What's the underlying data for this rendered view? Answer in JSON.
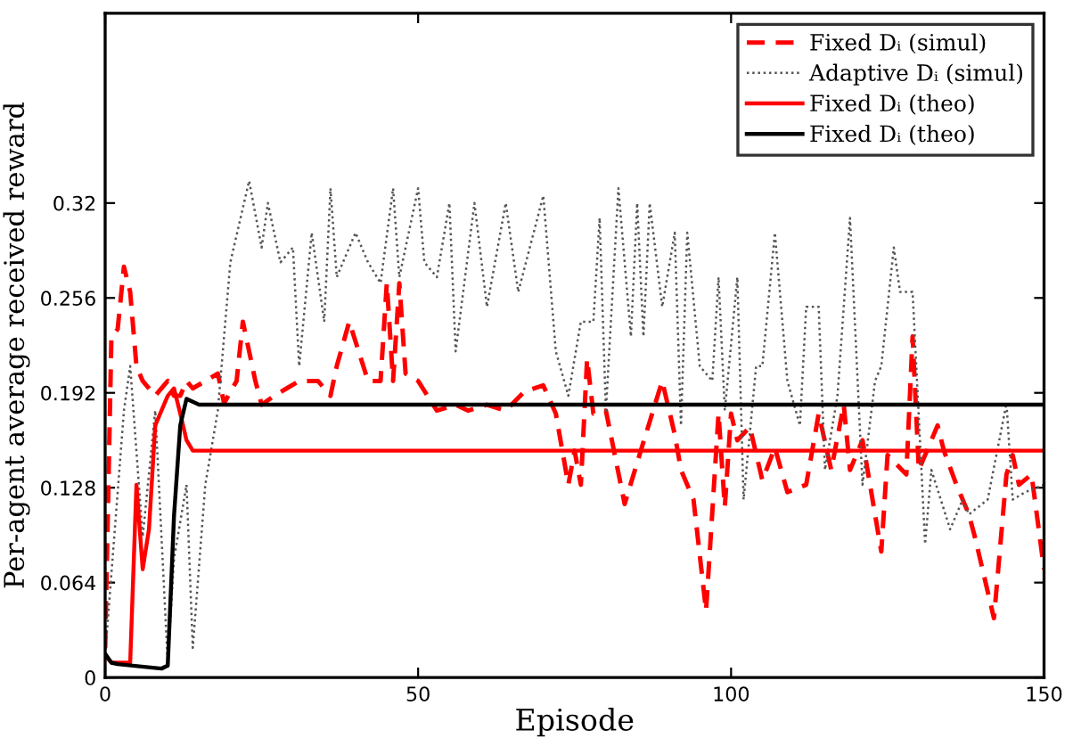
{
  "chart_data": {
    "type": "line",
    "xlabel": "Episode",
    "ylabel": "Per-agent average received reward",
    "xlim": [
      0,
      150
    ],
    "xticks": [
      0,
      50,
      100,
      150
    ],
    "ylim": [
      0,
      0.448
    ],
    "yticks": [
      0,
      0.064,
      0.128,
      0.192,
      0.256,
      0.32
    ],
    "grid": false,
    "legend": "top right",
    "marker": "none",
    "series": [
      {
        "name": "Fixed Dᵢ (simul)",
        "color": "#ff0000",
        "line_style": "dashed",
        "x": [
          0,
          1,
          2,
          3,
          4,
          5,
          6,
          8,
          10,
          11,
          12,
          13,
          14,
          16,
          18,
          19,
          21,
          22,
          24,
          25,
          27,
          29,
          31,
          34,
          36,
          37,
          39,
          42,
          44,
          45,
          46,
          47,
          48,
          50,
          53,
          56,
          58,
          61,
          64,
          67,
          70,
          72,
          74,
          75,
          76,
          77,
          78,
          80,
          83,
          85,
          89,
          91,
          92,
          94,
          96,
          98,
          99,
          100,
          101,
          103,
          105,
          107,
          109,
          112,
          114,
          116,
          118,
          119,
          121,
          124,
          125,
          128,
          129,
          130,
          133,
          134,
          136,
          138,
          139,
          142,
          144,
          145,
          146,
          148,
          150
        ],
        "values": [
          0.02,
          0.23,
          0.235,
          0.277,
          0.26,
          0.21,
          0.2,
          0.19,
          0.2,
          0.19,
          0.19,
          0.2,
          0.195,
          0.2,
          0.205,
          0.185,
          0.2,
          0.24,
          0.2,
          0.184,
          0.19,
          0.195,
          0.2,
          0.2,
          0.19,
          0.21,
          0.24,
          0.2,
          0.2,
          0.266,
          0.2,
          0.266,
          0.205,
          0.2,
          0.18,
          0.184,
          0.18,
          0.184,
          0.18,
          0.193,
          0.197,
          0.178,
          0.13,
          0.153,
          0.13,
          0.215,
          0.178,
          0.18,
          0.117,
          0.145,
          0.2,
          0.164,
          0.14,
          0.12,
          0.045,
          0.178,
          0.115,
          0.178,
          0.16,
          0.169,
          0.133,
          0.155,
          0.125,
          0.13,
          0.178,
          0.14,
          0.184,
          0.14,
          0.16,
          0.085,
          0.15,
          0.137,
          0.23,
          0.14,
          0.17,
          0.153,
          0.13,
          0.11,
          0.094,
          0.04,
          0.137,
          0.15,
          0.13,
          0.137,
          0.073
        ]
      },
      {
        "name": "Adaptive Dᵢ (simul)",
        "color": "#555555",
        "line_style": "dotted",
        "x": [
          0,
          3,
          4,
          6,
          8,
          10,
          11,
          13,
          14,
          16,
          18,
          20,
          23,
          25,
          26,
          28,
          30,
          31,
          33,
          35,
          36,
          37,
          40,
          42,
          44,
          46,
          47,
          50,
          51,
          53,
          55,
          56,
          59,
          61,
          64,
          66,
          70,
          72,
          74,
          76,
          78,
          79,
          80,
          82,
          84,
          85,
          86,
          87,
          89,
          91,
          92,
          93,
          95,
          97,
          98,
          99,
          101,
          102,
          104,
          105,
          107,
          109,
          111,
          112,
          114,
          115,
          117,
          119,
          121,
          123,
          124,
          126,
          127,
          129,
          131,
          132,
          135,
          137,
          138,
          141,
          144,
          145,
          147,
          150
        ],
        "values": [
          0.015,
          0.18,
          0.21,
          0.095,
          0.18,
          0.01,
          0.08,
          0.13,
          0.02,
          0.13,
          0.18,
          0.28,
          0.335,
          0.29,
          0.32,
          0.28,
          0.29,
          0.21,
          0.3,
          0.24,
          0.33,
          0.27,
          0.3,
          0.28,
          0.266,
          0.33,
          0.27,
          0.33,
          0.28,
          0.27,
          0.32,
          0.22,
          0.32,
          0.25,
          0.32,
          0.26,
          0.325,
          0.22,
          0.19,
          0.24,
          0.24,
          0.31,
          0.18,
          0.33,
          0.23,
          0.32,
          0.23,
          0.32,
          0.25,
          0.3,
          0.17,
          0.3,
          0.21,
          0.2,
          0.27,
          0.18,
          0.27,
          0.12,
          0.21,
          0.21,
          0.3,
          0.2,
          0.17,
          0.25,
          0.25,
          0.14,
          0.19,
          0.31,
          0.13,
          0.2,
          0.21,
          0.29,
          0.26,
          0.26,
          0.09,
          0.14,
          0.1,
          0.12,
          0.11,
          0.12,
          0.185,
          0.12,
          0.125,
          0.13
        ]
      },
      {
        "name": "Fixed Dᵢ (theo)",
        "color": "#ff0000",
        "line_style": "solid",
        "x": [
          0,
          1,
          3,
          4,
          5,
          6,
          7,
          8,
          9,
          10,
          11,
          12,
          13,
          14,
          150
        ],
        "values": [
          0.015,
          0.01,
          0.01,
          0.01,
          0.13,
          0.073,
          0.1,
          0.17,
          0.18,
          0.19,
          0.195,
          0.178,
          0.16,
          0.153,
          0.153
        ]
      },
      {
        "name": "Fixed Dᵢ (theo)",
        "color": "#000000",
        "line_style": "solid",
        "x": [
          0,
          1,
          2,
          9,
          10,
          11,
          12,
          13,
          14,
          15,
          150
        ],
        "values": [
          0.016,
          0.01,
          0.009,
          0.006,
          0.008,
          0.109,
          0.17,
          0.188,
          0.186,
          0.184,
          0.184
        ]
      }
    ]
  }
}
